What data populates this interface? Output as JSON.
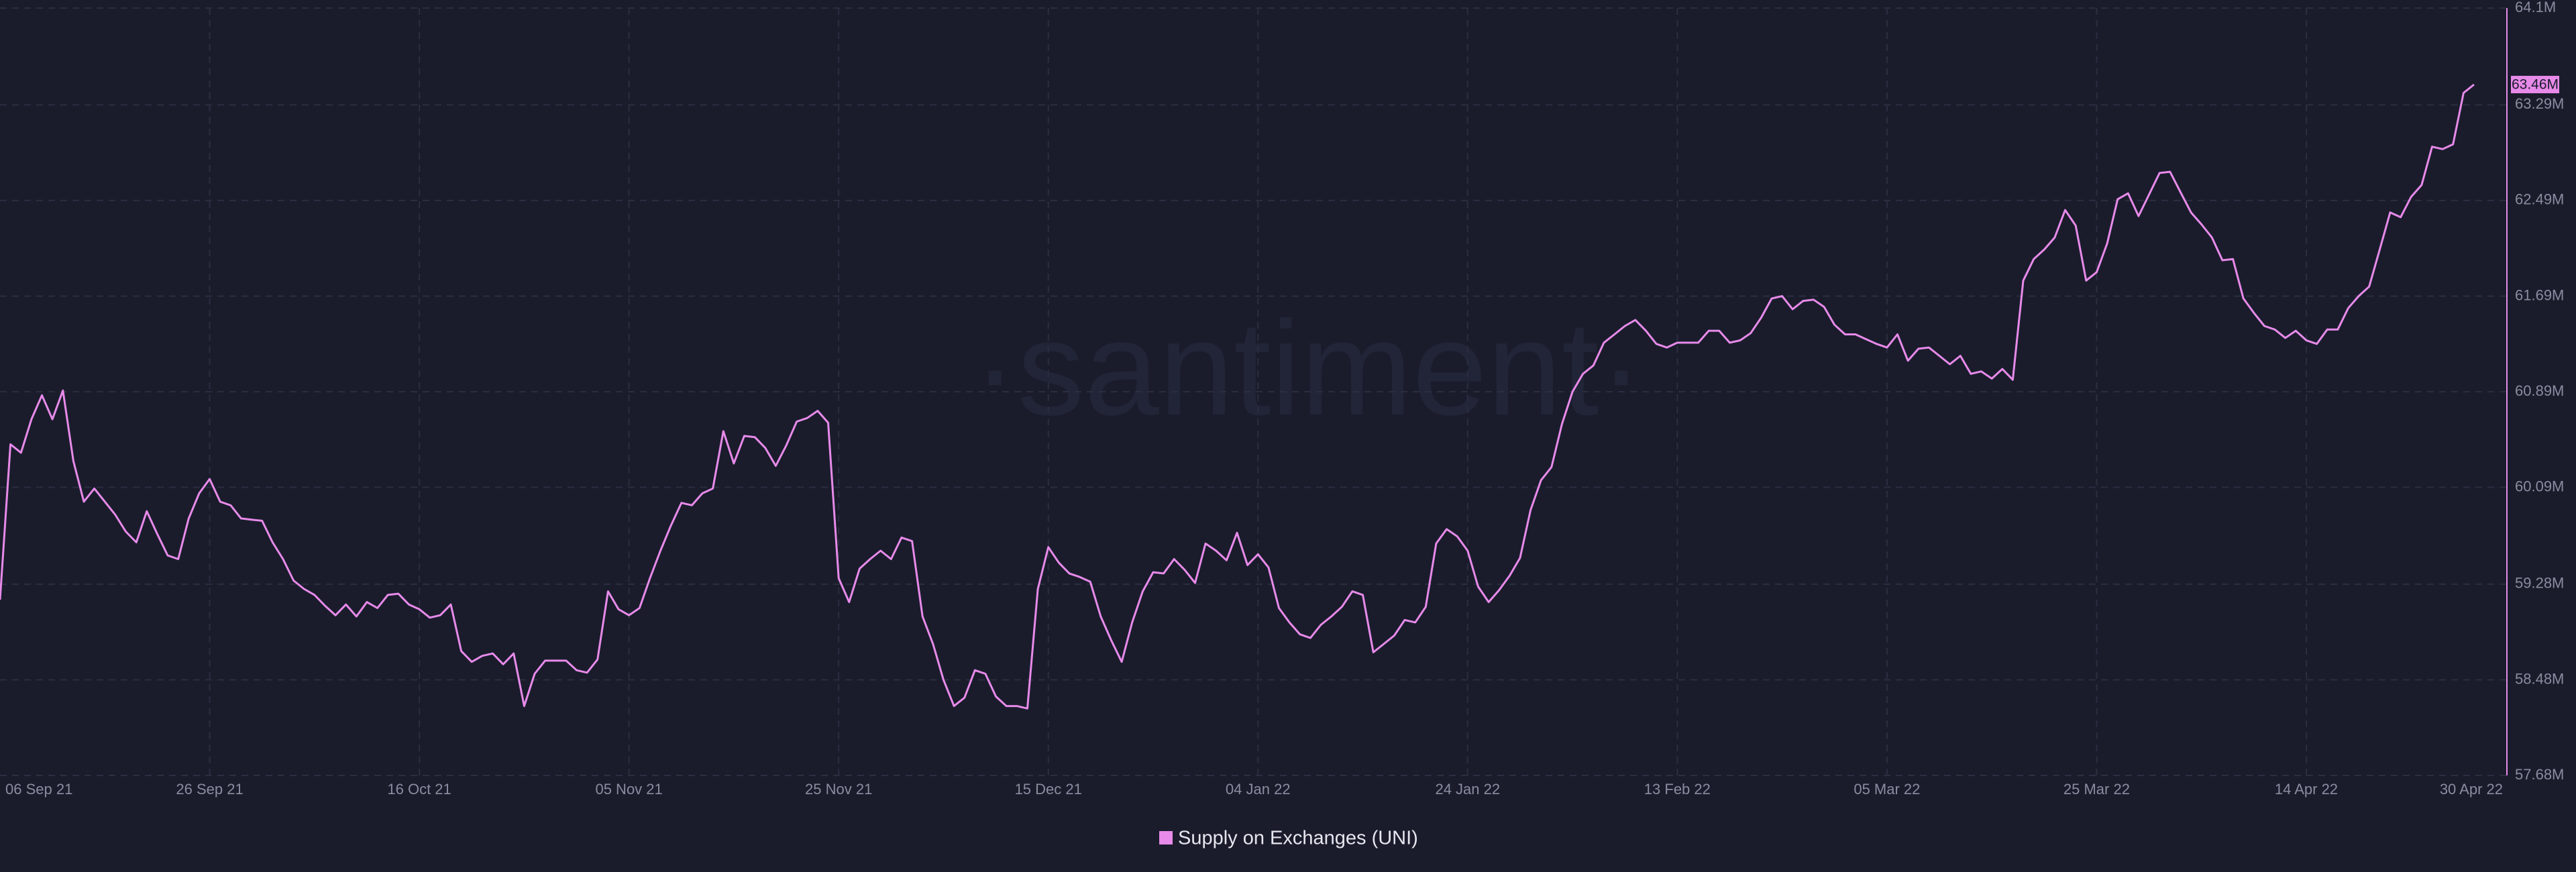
{
  "chart_data": {
    "type": "line",
    "watermark": "·santiment·",
    "x": [
      "2021-09-06",
      "2021-09-07",
      "2021-09-08",
      "2021-09-09",
      "2021-09-10",
      "2021-09-11",
      "2021-09-12",
      "2021-09-13",
      "2021-09-14",
      "2021-09-15",
      "2021-09-16",
      "2021-09-17",
      "2021-09-18",
      "2021-09-19",
      "2021-09-20",
      "2021-09-21",
      "2021-09-22",
      "2021-09-23",
      "2021-09-24",
      "2021-09-25",
      "2021-09-26",
      "2021-09-27",
      "2021-09-28",
      "2021-09-29",
      "2021-09-30",
      "2021-10-01",
      "2021-10-02",
      "2021-10-03",
      "2021-10-04",
      "2021-10-05",
      "2021-10-06",
      "2021-10-07",
      "2021-10-08",
      "2021-10-09",
      "2021-10-10",
      "2021-10-11",
      "2021-10-12",
      "2021-10-13",
      "2021-10-14",
      "2021-10-15",
      "2021-10-16",
      "2021-10-17",
      "2021-10-18",
      "2021-10-19",
      "2021-10-20",
      "2021-10-21",
      "2021-10-22",
      "2021-10-23",
      "2021-10-24",
      "2021-10-25",
      "2021-10-26",
      "2021-10-27",
      "2021-10-28",
      "2021-10-29",
      "2021-10-30",
      "2021-10-31",
      "2021-11-01",
      "2021-11-02",
      "2021-11-03",
      "2021-11-04",
      "2021-11-05",
      "2021-11-06",
      "2021-11-07",
      "2021-11-08",
      "2021-11-09",
      "2021-11-10",
      "2021-11-11",
      "2021-11-12",
      "2021-11-13",
      "2021-11-14",
      "2021-11-15",
      "2021-11-16",
      "2021-11-17",
      "2021-11-18",
      "2021-11-19",
      "2021-11-20",
      "2021-11-21",
      "2021-11-22",
      "2021-11-23",
      "2021-11-24",
      "2021-11-25",
      "2021-11-26",
      "2021-11-27",
      "2021-11-28",
      "2021-11-29",
      "2021-11-30",
      "2021-12-01",
      "2021-12-02",
      "2021-12-03",
      "2021-12-04",
      "2021-12-05",
      "2021-12-06",
      "2021-12-07",
      "2021-12-08",
      "2021-12-09",
      "2021-12-10",
      "2021-12-11",
      "2021-12-12",
      "2021-12-13",
      "2021-12-14",
      "2021-12-15",
      "2021-12-16",
      "2021-12-17",
      "2021-12-18",
      "2021-12-19",
      "2021-12-20",
      "2021-12-21",
      "2021-12-22",
      "2021-12-23",
      "2021-12-24",
      "2021-12-25",
      "2021-12-26",
      "2021-12-27",
      "2021-12-28",
      "2021-12-29",
      "2021-12-30",
      "2021-12-31",
      "2022-01-01",
      "2022-01-02",
      "2022-01-03",
      "2022-01-04",
      "2022-01-05",
      "2022-01-06",
      "2022-01-07",
      "2022-01-08",
      "2022-01-09",
      "2022-01-10",
      "2022-01-11",
      "2022-01-12",
      "2022-01-13",
      "2022-01-14",
      "2022-01-15",
      "2022-01-16",
      "2022-01-17",
      "2022-01-18",
      "2022-01-19",
      "2022-01-20",
      "2022-01-21",
      "2022-01-22",
      "2022-01-23",
      "2022-01-24",
      "2022-01-25",
      "2022-01-26",
      "2022-01-27",
      "2022-01-28",
      "2022-01-29",
      "2022-01-30",
      "2022-01-31",
      "2022-02-01",
      "2022-02-02",
      "2022-02-03",
      "2022-02-04",
      "2022-02-05",
      "2022-02-06",
      "2022-02-07",
      "2022-02-08",
      "2022-02-09",
      "2022-02-10",
      "2022-02-11",
      "2022-02-12",
      "2022-02-13",
      "2022-02-14",
      "2022-02-15",
      "2022-02-16",
      "2022-02-17",
      "2022-02-18",
      "2022-02-19",
      "2022-02-20",
      "2022-02-21",
      "2022-02-22",
      "2022-02-23",
      "2022-02-24",
      "2022-02-25",
      "2022-02-26",
      "2022-02-27",
      "2022-02-28",
      "2022-03-01",
      "2022-03-02",
      "2022-03-03",
      "2022-03-04",
      "2022-03-05",
      "2022-03-06",
      "2022-03-07",
      "2022-03-08",
      "2022-03-09",
      "2022-03-10",
      "2022-03-11",
      "2022-03-12",
      "2022-03-13",
      "2022-03-14",
      "2022-03-15",
      "2022-03-16",
      "2022-03-17",
      "2022-03-18",
      "2022-03-19",
      "2022-03-20",
      "2022-03-21",
      "2022-03-22",
      "2022-03-23",
      "2022-03-24",
      "2022-03-25",
      "2022-03-26",
      "2022-03-27",
      "2022-03-28",
      "2022-03-29",
      "2022-03-30",
      "2022-03-31",
      "2022-04-01",
      "2022-04-02",
      "2022-04-03",
      "2022-04-04",
      "2022-04-05",
      "2022-04-06",
      "2022-04-07",
      "2022-04-08",
      "2022-04-09",
      "2022-04-10",
      "2022-04-11",
      "2022-04-12",
      "2022-04-13",
      "2022-04-14",
      "2022-04-15",
      "2022-04-16",
      "2022-04-17",
      "2022-04-18",
      "2022-04-19",
      "2022-04-20",
      "2022-04-21",
      "2022-04-22",
      "2022-04-23",
      "2022-04-24",
      "2022-04-25",
      "2022-04-26",
      "2022-04-27",
      "2022-04-28",
      "2022-04-29",
      "2022-04-30"
    ],
    "series": [
      {
        "name": "Supply on Exchanges (UNI)",
        "color": "#e78ae9",
        "values": [
          59.15,
          60.45,
          60.38,
          60.66,
          60.86,
          60.66,
          60.9,
          60.31,
          59.97,
          60.08,
          59.97,
          59.86,
          59.72,
          59.63,
          59.89,
          59.7,
          59.52,
          59.49,
          59.83,
          60.04,
          60.16,
          59.97,
          59.94,
          59.83,
          59.82,
          59.81,
          59.63,
          59.49,
          59.31,
          59.24,
          59.19,
          59.1,
          59.02,
          59.11,
          59.01,
          59.13,
          59.08,
          59.19,
          59.2,
          59.11,
          59.07,
          59.0,
          59.02,
          59.11,
          58.72,
          58.63,
          58.68,
          58.7,
          58.61,
          58.7,
          58.26,
          58.53,
          58.64,
          58.64,
          58.64,
          58.56,
          58.54,
          58.65,
          59.22,
          59.07,
          59.02,
          59.08,
          59.33,
          59.56,
          59.77,
          59.96,
          59.94,
          60.04,
          60.08,
          60.56,
          60.29,
          60.52,
          60.51,
          60.42,
          60.27,
          60.44,
          60.64,
          60.67,
          60.73,
          60.63,
          59.33,
          59.13,
          59.41,
          59.49,
          59.56,
          59.49,
          59.67,
          59.64,
          59.01,
          58.78,
          58.48,
          58.26,
          58.33,
          58.56,
          58.53,
          58.34,
          58.26,
          58.26,
          58.24,
          59.24,
          59.59,
          59.46,
          59.37,
          59.34,
          59.3,
          59.01,
          58.81,
          58.63,
          58.96,
          59.22,
          59.38,
          59.37,
          59.49,
          59.4,
          59.29,
          59.62,
          59.56,
          59.48,
          59.71,
          59.44,
          59.53,
          59.42,
          59.08,
          58.96,
          58.86,
          58.83,
          58.94,
          59.01,
          59.09,
          59.22,
          59.19,
          58.71,
          58.78,
          58.85,
          58.98,
          58.96,
          59.09,
          59.62,
          59.74,
          59.68,
          59.56,
          59.26,
          59.13,
          59.23,
          59.35,
          59.5,
          59.9,
          60.15,
          60.26,
          60.62,
          60.89,
          61.04,
          61.11,
          61.3,
          61.37,
          61.44,
          61.49,
          61.4,
          61.29,
          61.26,
          61.3,
          61.3,
          61.3,
          61.4,
          61.4,
          61.3,
          61.32,
          61.38,
          61.51,
          61.67,
          61.69,
          61.58,
          61.65,
          61.66,
          61.6,
          61.45,
          61.37,
          61.37,
          61.33,
          61.29,
          61.26,
          61.37,
          61.15,
          61.25,
          61.26,
          61.19,
          61.12,
          61.19,
          61.04,
          61.06,
          61.0,
          61.08,
          60.99,
          61.82,
          62.0,
          62.08,
          62.18,
          62.41,
          62.28,
          61.82,
          61.89,
          62.13,
          62.5,
          62.55,
          62.36,
          62.54,
          62.72,
          62.73,
          62.56,
          62.39,
          62.29,
          62.18,
          61.99,
          62.0,
          61.67,
          61.55,
          61.44,
          61.41,
          61.34,
          61.4,
          61.32,
          61.29,
          61.41,
          61.41,
          61.59,
          61.69,
          61.77,
          62.08,
          62.39,
          62.35,
          62.52,
          62.62,
          62.94,
          62.92,
          62.96,
          63.39,
          63.46
        ]
      }
    ],
    "xlim": [
      "2021-09-06",
      "2022-04-30"
    ],
    "xticks": [
      {
        "value": "2021-09-06",
        "label": "06 Sep 21"
      },
      {
        "value": "2021-09-26",
        "label": "26 Sep 21"
      },
      {
        "value": "2021-10-16",
        "label": "16 Oct 21"
      },
      {
        "value": "2021-11-05",
        "label": "05 Nov 21"
      },
      {
        "value": "2021-11-25",
        "label": "25 Nov 21"
      },
      {
        "value": "2021-12-15",
        "label": "15 Dec 21"
      },
      {
        "value": "2022-01-04",
        "label": "04 Jan 22"
      },
      {
        "value": "2022-01-24",
        "label": "24 Jan 22"
      },
      {
        "value": "2022-02-13",
        "label": "13 Feb 22"
      },
      {
        "value": "2022-03-05",
        "label": "05 Mar 22"
      },
      {
        "value": "2022-03-25",
        "label": "25 Mar 22"
      },
      {
        "value": "2022-04-14",
        "label": "14 Apr 22"
      },
      {
        "value": "2022-04-30",
        "label": "30 Apr 22"
      }
    ],
    "ylim": [
      57.68,
      64.1
    ],
    "yticks": [
      {
        "value": 57.68,
        "label": "57.68M"
      },
      {
        "value": 58.48,
        "label": "58.48M"
      },
      {
        "value": 59.28,
        "label": "59.28M"
      },
      {
        "value": 60.09,
        "label": "60.09M"
      },
      {
        "value": 60.89,
        "label": "60.89M"
      },
      {
        "value": 61.69,
        "label": "61.69M"
      },
      {
        "value": 62.49,
        "label": "62.49M"
      },
      {
        "value": 63.29,
        "label": "63.29M"
      },
      {
        "value": 64.1,
        "label": "64.1M"
      }
    ],
    "current_value": {
      "value": 63.46,
      "label": "63.46M"
    },
    "grid": true
  }
}
